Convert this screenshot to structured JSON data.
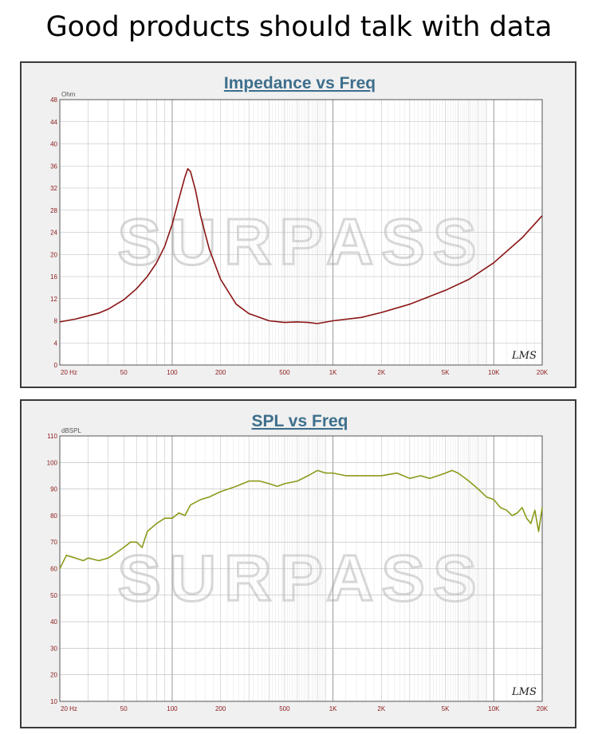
{
  "headline": "Good products should talk with data",
  "watermark": "SURPASS",
  "chart_data": [
    {
      "type": "line",
      "title": "Impedance vs Freq",
      "ylabel": "Ohm",
      "x_scale": "log",
      "xlim": [
        20,
        20000
      ],
      "ylim": [
        0,
        48
      ],
      "x_ticks": [
        20,
        50,
        100,
        200,
        500,
        1000,
        2000,
        5000,
        10000,
        20000
      ],
      "x_tick_labels": [
        "20 Hz",
        "50",
        "100",
        "200",
        "500",
        "1K",
        "2K",
        "5K",
        "10K",
        "20K"
      ],
      "y_ticks": [
        0,
        4,
        8,
        12,
        16,
        20,
        24,
        28,
        32,
        36,
        40,
        44,
        48
      ],
      "grid": true,
      "logo": "LMS",
      "line_color": "#8a1414",
      "series": [
        {
          "x": [
            20,
            25,
            30,
            35,
            40,
            50,
            60,
            70,
            80,
            90,
            100,
            110,
            120,
            125,
            130,
            140,
            150,
            170,
            200,
            250,
            300,
            400,
            500,
            600,
            700,
            800,
            1000,
            1500,
            2000,
            3000,
            5000,
            7000,
            10000,
            15000,
            20000
          ],
          "values": [
            7.8,
            8.3,
            8.9,
            9.4,
            10.1,
            11.8,
            13.8,
            16.0,
            18.5,
            21.5,
            25.5,
            30.0,
            34.0,
            35.5,
            35.0,
            31.5,
            27.0,
            21.0,
            15.5,
            11.0,
            9.3,
            8.0,
            7.7,
            7.8,
            7.7,
            7.5,
            8.0,
            8.6,
            9.5,
            11.0,
            13.5,
            15.5,
            18.5,
            23.0,
            27.0
          ]
        }
      ]
    },
    {
      "type": "line",
      "title": "SPL vs Freq",
      "ylabel": "dBSPL",
      "x_scale": "log",
      "xlim": [
        20,
        20000
      ],
      "ylim": [
        10,
        110
      ],
      "x_ticks": [
        20,
        50,
        100,
        200,
        500,
        1000,
        2000,
        5000,
        10000,
        20000
      ],
      "x_tick_labels": [
        "20 Hz",
        "50",
        "100",
        "200",
        "500",
        "1K",
        "2K",
        "5K",
        "10K",
        "20K"
      ],
      "y_ticks": [
        10,
        20,
        30,
        40,
        50,
        60,
        70,
        80,
        90,
        100,
        110
      ],
      "grid": true,
      "logo": "LMS",
      "line_color": "#8c9a1a",
      "series": [
        {
          "x": [
            20,
            22,
            25,
            28,
            30,
            35,
            40,
            45,
            50,
            55,
            60,
            65,
            70,
            80,
            90,
            100,
            110,
            120,
            130,
            150,
            170,
            200,
            250,
            300,
            350,
            400,
            450,
            500,
            600,
            700,
            800,
            900,
            1000,
            1200,
            1500,
            2000,
            2500,
            3000,
            3500,
            4000,
            4500,
            5000,
            5500,
            6000,
            7000,
            8000,
            9000,
            10000,
            11000,
            12000,
            13000,
            14000,
            15000,
            16000,
            17000,
            18000,
            19000,
            20000
          ],
          "values": [
            60,
            65,
            64,
            63,
            64,
            63,
            64,
            66,
            68,
            70,
            70,
            68,
            74,
            77,
            79,
            79,
            81,
            80,
            84,
            86,
            87,
            89,
            91,
            93,
            93,
            92,
            91,
            92,
            93,
            95,
            97,
            96,
            96,
            95,
            95,
            95,
            96,
            94,
            95,
            94,
            95,
            96,
            97,
            96,
            93,
            90,
            87,
            86,
            83,
            82,
            80,
            81,
            83,
            79,
            77,
            82,
            74,
            83
          ]
        }
      ]
    }
  ]
}
